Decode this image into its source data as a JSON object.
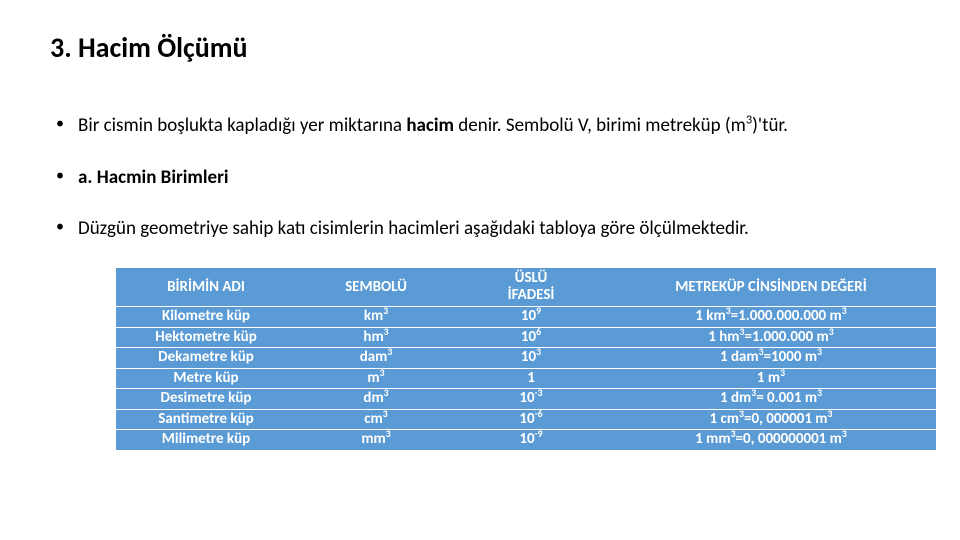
{
  "title": "3. Hacim Ölçümü",
  "bullets": {
    "b1_pre": "Bir cismin boşlukta kapladığı yer miktarına ",
    "b1_bold": "hacim",
    "b1_post1": " denir. Sembolü V, birimi metreküp (m",
    "b1_sup": "3",
    "b1_post2": ")'tür.",
    "b2": "a. Hacmin Birimleri",
    "b3": "Düzgün geometriye sahip katı cisimlerin hacimleri aşağıdaki tabloya göre ölçülmektedir."
  },
  "table": {
    "header_bg": "#5b9bd5",
    "header_fg": "#ffffff",
    "headers": {
      "name": "BİRİMİN ADI",
      "sym": "SEMBOLÜ",
      "exp_l1": "ÜSLÜ",
      "exp_l2": "İFADESİ",
      "val": "METREKÜP CİNSİNDEN DEĞERİ"
    },
    "rows": [
      {
        "name": "Kilometre küp",
        "sym_b": "km",
        "sym_s": "3",
        "exp_b": "10",
        "exp_s": "9",
        "val_a": "1 km",
        "val_as": "3",
        "val_b": "=1.000.000.000 m",
        "val_bs": "3"
      },
      {
        "name": "Hektometre küp",
        "sym_b": "hm",
        "sym_s": "3",
        "exp_b": "10",
        "exp_s": "6",
        "val_a": "1 hm",
        "val_as": "3",
        "val_b": "=1.000.000 m",
        "val_bs": "3"
      },
      {
        "name": "Dekametre küp",
        "sym_b": "dam",
        "sym_s": "3",
        "exp_b": "10",
        "exp_s": "3",
        "val_a": "1 dam",
        "val_as": "3",
        "val_b": "=1000 m",
        "val_bs": "3"
      },
      {
        "name": "Metre küp",
        "sym_b": "m",
        "sym_s": "3",
        "exp_b": "1",
        "exp_s": "",
        "val_a": "1 m",
        "val_as": "3",
        "val_b": "",
        "val_bs": ""
      },
      {
        "name": "Desimetre küp",
        "sym_b": "dm",
        "sym_s": "3",
        "exp_b": "10",
        "exp_s": "-3",
        "val_a": "1 dm",
        "val_as": "3",
        "val_b": "= 0.001 m",
        "val_bs": "3"
      },
      {
        "name": "Santimetre küp",
        "sym_b": "cm",
        "sym_s": "3",
        "exp_b": "10",
        "exp_s": "-6",
        "val_a": "1 cm",
        "val_as": "3",
        "val_b": "=0, 000001 m",
        "val_bs": "3"
      },
      {
        "name": "Milimetre küp",
        "sym_b": "mm",
        "sym_s": "3",
        "exp_b": "10",
        "exp_s": "-9",
        "val_a": "1 mm",
        "val_as": "3",
        "val_b": "=0, 000000001 m",
        "val_bs": "3"
      }
    ]
  }
}
